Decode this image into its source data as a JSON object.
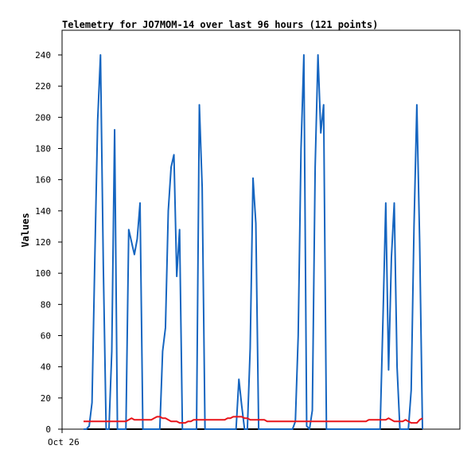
{
  "chart_data": {
    "type": "line",
    "title": "Telemetry for JO7MOM-14 over last 96 hours (121 points)",
    "xlabel": "",
    "ylabel": "Values",
    "x_tick_labels": [
      "Oct 26"
    ],
    "ylim": [
      0,
      250
    ],
    "y_ticks": [
      0,
      20,
      40,
      60,
      80,
      100,
      120,
      140,
      160,
      180,
      200,
      220,
      240
    ],
    "grid": false,
    "legend": "none",
    "colors": {
      "series1": "#1565c0",
      "series2": "#e8141a",
      "baseline": "#000000"
    },
    "series": [
      {
        "values": [
          0,
          0,
          2,
          17,
          110,
          198,
          240,
          105,
          0,
          0,
          50,
          192,
          0,
          0,
          0,
          0,
          128,
          120,
          112,
          122,
          145,
          0,
          0,
          0,
          0,
          0,
          0,
          0,
          50,
          65,
          140,
          168,
          176,
          98,
          128,
          0,
          0,
          0,
          0,
          0,
          0,
          208,
          155,
          0,
          0,
          0,
          0,
          0,
          0,
          0,
          0,
          0,
          0,
          0,
          0,
          32,
          15,
          0,
          0,
          52,
          161,
          132,
          0,
          0,
          0,
          0,
          0,
          0,
          0,
          0,
          0,
          0,
          0,
          0,
          0,
          5,
          60,
          180,
          240,
          2,
          0,
          12,
          168,
          240,
          190,
          208,
          0,
          0,
          0,
          0,
          0,
          0,
          0,
          0,
          0,
          0,
          0,
          0,
          0,
          0,
          0,
          0,
          0,
          0,
          0,
          0,
          70,
          145,
          38,
          110,
          145,
          40,
          0,
          0,
          0,
          0,
          25,
          130,
          208,
          120,
          0
        ]
      },
      {
        "values": [
          5,
          5,
          5,
          5,
          5,
          5,
          5,
          5,
          5,
          5,
          5,
          5,
          5,
          5,
          5,
          5,
          6,
          7,
          6,
          6,
          6,
          6,
          6,
          6,
          6,
          7,
          8,
          8,
          7,
          7,
          6,
          5,
          5,
          5,
          4,
          4,
          4,
          5,
          5,
          6,
          6,
          6,
          6,
          6,
          6,
          6,
          6,
          6,
          6,
          6,
          6,
          7,
          7,
          8,
          8,
          8,
          8,
          7,
          7,
          6,
          6,
          6,
          6,
          6,
          6,
          5,
          5,
          5,
          5,
          5,
          5,
          5,
          5,
          5,
          5,
          5,
          5,
          5,
          5,
          5,
          5,
          5,
          5,
          5,
          5,
          5,
          5,
          5,
          5,
          5,
          5,
          5,
          5,
          5,
          5,
          5,
          5,
          5,
          5,
          5,
          5,
          6,
          6,
          6,
          6,
          6,
          6,
          6,
          7,
          6,
          5,
          5,
          5,
          5,
          6,
          5,
          4,
          4,
          4,
          6,
          7
        ]
      }
    ]
  }
}
